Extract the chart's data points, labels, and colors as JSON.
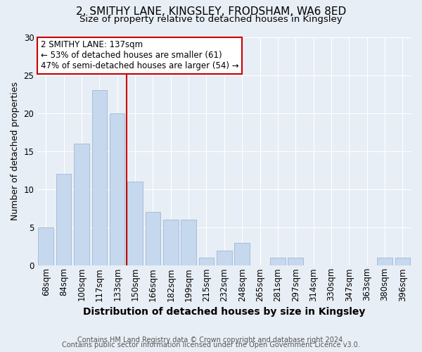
{
  "title": "2, SMITHY LANE, KINGSLEY, FRODSHAM, WA6 8ED",
  "subtitle": "Size of property relative to detached houses in Kingsley",
  "xlabel": "Distribution of detached houses by size in Kingsley",
  "ylabel": "Number of detached properties",
  "bar_labels": [
    "68sqm",
    "84sqm",
    "100sqm",
    "117sqm",
    "133sqm",
    "150sqm",
    "166sqm",
    "182sqm",
    "199sqm",
    "215sqm",
    "232sqm",
    "248sqm",
    "265sqm",
    "281sqm",
    "297sqm",
    "314sqm",
    "330sqm",
    "347sqm",
    "363sqm",
    "380sqm",
    "396sqm"
  ],
  "bar_values": [
    5,
    12,
    16,
    23,
    20,
    11,
    7,
    6,
    6,
    1,
    2,
    3,
    0,
    1,
    1,
    0,
    0,
    0,
    0,
    1,
    1
  ],
  "bar_color": "#c5d8ed",
  "bar_edgecolor": "#a0b8d8",
  "vline_x_index": 4.53,
  "vline_color": "#cc0000",
  "annotation_text": "2 SMITHY LANE: 137sqm\n← 53% of detached houses are smaller (61)\n47% of semi-detached houses are larger (54) →",
  "annotation_box_facecolor": "#ffffff",
  "annotation_box_edgecolor": "#cc0000",
  "ylim": [
    0,
    30
  ],
  "yticks": [
    0,
    5,
    10,
    15,
    20,
    25,
    30
  ],
  "background_color": "#e8eef5",
  "plot_background": "#e8eef5",
  "grid_color": "#ffffff",
  "footer_line1": "Contains HM Land Registry data © Crown copyright and database right 2024.",
  "footer_line2": "Contains public sector information licensed under the Open Government Licence v3.0.",
  "title_fontsize": 11,
  "subtitle_fontsize": 9.5,
  "xlabel_fontsize": 10,
  "ylabel_fontsize": 9,
  "tick_fontsize": 8.5,
  "annotation_fontsize": 8.5,
  "footer_fontsize": 7
}
